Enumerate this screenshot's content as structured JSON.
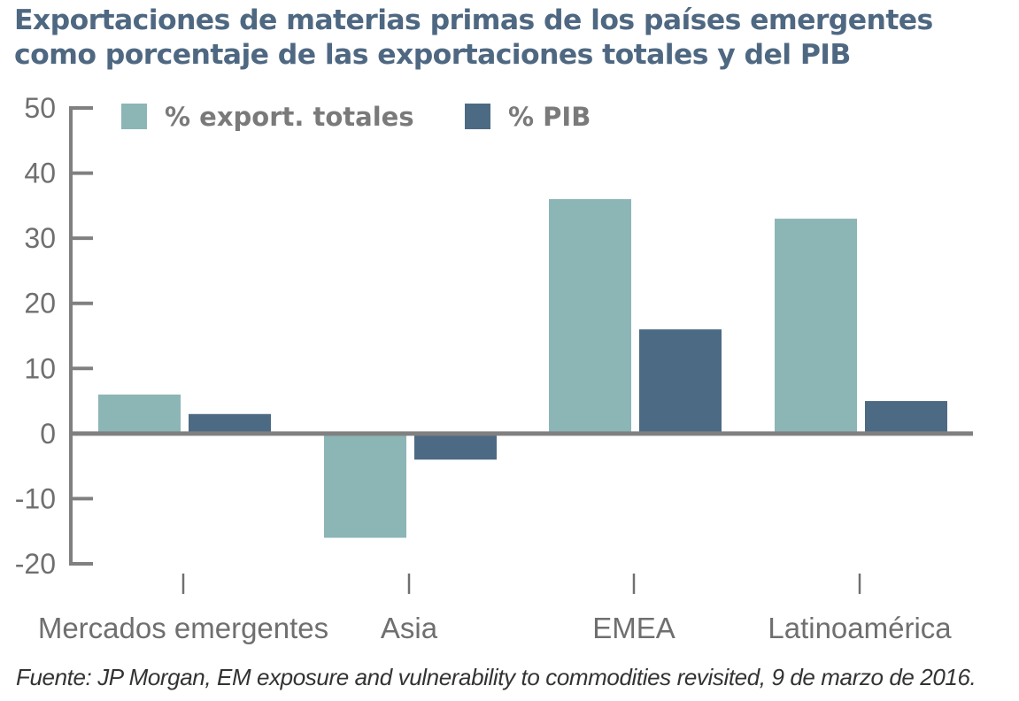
{
  "chart_data": {
    "type": "bar",
    "title": "Exportaciones de materias primas de los países emergentes como porcentaje de las exportaciones totales y del PIB",
    "title_lines": [
      "Exportaciones de materias primas de los países emergentes",
      "como porcentaje de las exportaciones totales y del PIB"
    ],
    "categories": [
      "Mercados emergentes",
      "Asia",
      "EMEA",
      "Latinoamérica"
    ],
    "series": [
      {
        "name": "% export. totales",
        "color": "#8cb5b6",
        "values": [
          6,
          -16,
          36,
          33
        ]
      },
      {
        "name": "% PIB",
        "color": "#4d6a84",
        "values": [
          3,
          -4,
          16,
          5
        ]
      }
    ],
    "xlabel": "",
    "ylabel": "",
    "ylim": [
      -20,
      50
    ],
    "yticks": [
      50,
      40,
      30,
      20,
      10,
      0,
      -10,
      -20
    ],
    "grid": false,
    "legend_position": "top",
    "axis_color": "#808080",
    "source": "Fuente: JP Morgan, EM exposure and vulnerability to commodities revisited, 9 de marzo de 2016."
  }
}
